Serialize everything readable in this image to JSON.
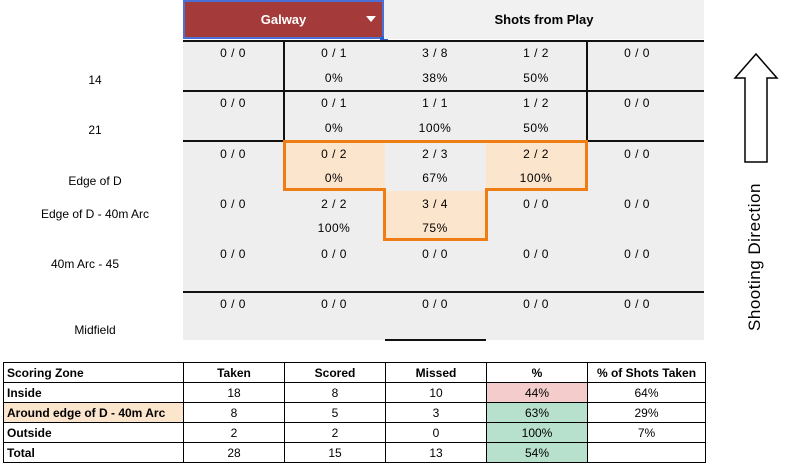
{
  "header": {
    "team_dropdown": "Galway",
    "shot_type": "Shots from Play"
  },
  "row_labels": [
    "14",
    "21",
    "Edge of D",
    "Edge of D - 40m Arc",
    "40m Arc - 45",
    "Midfield"
  ],
  "grid": [
    [
      {
        "ratio": "0 / 0",
        "pct": ""
      },
      {
        "ratio": "0 / 1",
        "pct": "0%"
      },
      {
        "ratio": "3 / 8",
        "pct": "38%"
      },
      {
        "ratio": "1 / 2",
        "pct": "50%"
      },
      {
        "ratio": "0 / 0",
        "pct": ""
      }
    ],
    [
      {
        "ratio": "0 / 0",
        "pct": ""
      },
      {
        "ratio": "0 / 1",
        "pct": "0%"
      },
      {
        "ratio": "1 / 1",
        "pct": "100%"
      },
      {
        "ratio": "1 / 2",
        "pct": "50%"
      },
      {
        "ratio": "0 / 0",
        "pct": ""
      }
    ],
    [
      {
        "ratio": "0 / 0",
        "pct": ""
      },
      {
        "ratio": "0 / 2",
        "pct": "0%"
      },
      {
        "ratio": "2 / 3",
        "pct": "67%"
      },
      {
        "ratio": "2 / 2",
        "pct": "100%"
      },
      {
        "ratio": "0 / 0",
        "pct": ""
      }
    ],
    [
      {
        "ratio": "0 / 0",
        "pct": ""
      },
      {
        "ratio": "2 / 2",
        "pct": "100%"
      },
      {
        "ratio": "3 / 4",
        "pct": "75%"
      },
      {
        "ratio": "0 / 0",
        "pct": ""
      },
      {
        "ratio": "0 / 0",
        "pct": ""
      }
    ],
    [
      {
        "ratio": "0 / 0",
        "pct": ""
      },
      {
        "ratio": "0 / 0",
        "pct": ""
      },
      {
        "ratio": "0 / 0",
        "pct": ""
      },
      {
        "ratio": "0 / 0",
        "pct": ""
      },
      {
        "ratio": "0 / 0",
        "pct": ""
      }
    ],
    [
      {
        "ratio": "0 / 0",
        "pct": ""
      },
      {
        "ratio": "0 / 0",
        "pct": ""
      },
      {
        "ratio": "0 / 0",
        "pct": ""
      },
      {
        "ratio": "0 / 0",
        "pct": ""
      },
      {
        "ratio": "0 / 0",
        "pct": ""
      }
    ]
  ],
  "shooting_direction": "Shooting Direction",
  "arrow_icon": "up-arrow-icon",
  "colors": {
    "header_dropdown": "#a43a3a",
    "zone_highlight": "#fce5cd",
    "zone_outline": "#ef7d16",
    "pct_low": "#f4cccc",
    "pct_high": "#b7e1cd"
  },
  "summary": {
    "headers": [
      "Scoring Zone",
      "Taken",
      "Scored",
      "Missed",
      "%",
      "% of Shots Taken"
    ],
    "rows": [
      {
        "zone": "Inside",
        "taken": "18",
        "scored": "8",
        "missed": "10",
        "pct": "44%",
        "share": "64%"
      },
      {
        "zone": "Around edge of D - 40m Arc",
        "taken": "8",
        "scored": "5",
        "missed": "3",
        "pct": "63%",
        "share": "29%"
      },
      {
        "zone": "Outside",
        "taken": "2",
        "scored": "2",
        "missed": "0",
        "pct": "100%",
        "share": "7%"
      },
      {
        "zone": "Total",
        "taken": "28",
        "scored": "15",
        "missed": "13",
        "pct": "54%",
        "share": ""
      }
    ]
  }
}
